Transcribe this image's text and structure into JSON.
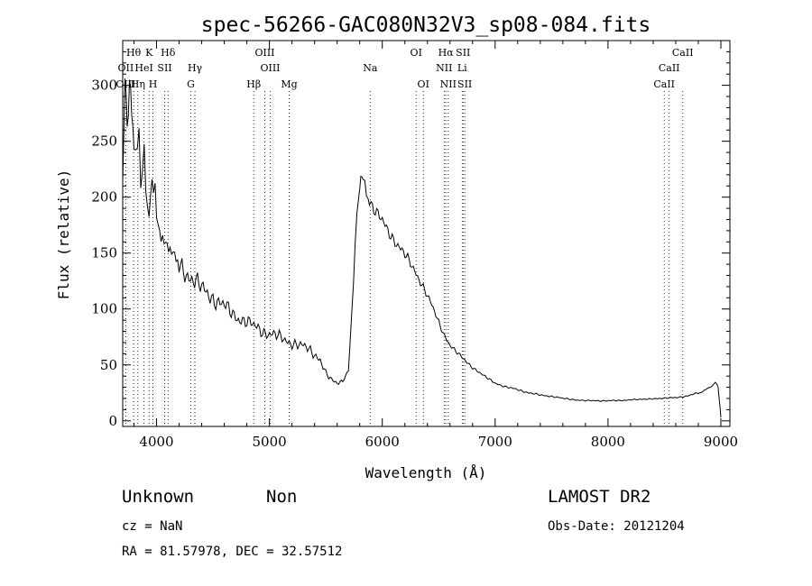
{
  "chart_data": {
    "type": "line",
    "title": "spec-56266-GAC080N32V3_sp08-084.fits",
    "xlabel": "Wavelength (Å)",
    "ylabel": "Flux (relative)",
    "xlim": [
      3700,
      9080
    ],
    "ylim": [
      -5,
      340
    ],
    "x_ticks": [
      4000,
      5000,
      6000,
      7000,
      8000,
      9000
    ],
    "y_ticks": [
      0,
      50,
      100,
      150,
      200,
      250,
      300
    ],
    "grid": false,
    "line_color": "#000000",
    "series": [
      {
        "x": [
          3700,
          3720,
          3740,
          3760,
          3780,
          3800,
          3830,
          3860,
          3890,
          3920,
          3960,
          4000,
          4040,
          4080,
          4120,
          4160,
          4200,
          4250,
          4300,
          4350,
          4400,
          4450,
          4500,
          4550,
          4600,
          4650,
          4700,
          4750,
          4800,
          4850,
          4900,
          4950,
          5000,
          5050,
          5100,
          5150,
          5200,
          5250,
          5300,
          5350,
          5400,
          5450,
          5500,
          5550,
          5600,
          5650,
          5700,
          5730,
          5760,
          5790,
          5810,
          5830,
          5860,
          5900,
          5950,
          6000,
          6050,
          6100,
          6150,
          6200,
          6250,
          6300,
          6350,
          6400,
          6450,
          6500,
          6550,
          6600,
          6650,
          6700,
          6800,
          6900,
          7000,
          7100,
          7200,
          7300,
          7400,
          7500,
          7600,
          7700,
          7800,
          7900,
          8000,
          8100,
          8200,
          8300,
          8400,
          8500,
          8600,
          8700,
          8800,
          8880,
          8920,
          8950,
          8975,
          8990,
          9000
        ],
        "y": [
          215,
          280,
          260,
          305,
          250,
          275,
          230,
          245,
          215,
          210,
          195,
          180,
          170,
          160,
          150,
          145,
          140,
          135,
          128,
          123,
          118,
          115,
          110,
          106,
          102,
          98,
          94,
          91,
          88,
          85,
          83,
          80,
          78,
          76,
          74,
          72,
          70,
          68,
          66,
          64,
          60,
          55,
          42,
          36,
          34,
          36,
          45,
          95,
          160,
          200,
          222,
          215,
          205,
          195,
          185,
          178,
          170,
          163,
          156,
          148,
          140,
          132,
          123,
          112,
          100,
          88,
          77,
          68,
          62,
          57,
          48,
          40,
          34,
          30,
          28,
          25,
          23,
          22,
          20,
          19,
          18,
          18,
          18,
          18,
          19,
          19,
          20,
          20,
          21,
          22,
          25,
          28,
          31,
          34,
          30,
          15,
          3
        ]
      }
    ],
    "spectral_lines": [
      {
        "label": "Hθ",
        "x": 3797,
        "row": 0
      },
      {
        "label": "K",
        "x": 3934,
        "row": 0
      },
      {
        "label": "Hδ",
        "x": 4102,
        "row": 0
      },
      {
        "label": "OIII",
        "x": 4959,
        "row": 0
      },
      {
        "label": "OI",
        "x": 6300,
        "row": 0
      },
      {
        "label": "Hα",
        "x": 6563,
        "row": 0
      },
      {
        "label": "SII",
        "x": 6716,
        "row": 0
      },
      {
        "label": "CaII",
        "x": 8662,
        "row": 0
      },
      {
        "label": "OII",
        "x": 3727,
        "row": 1
      },
      {
        "label": "HeI",
        "x": 3889,
        "row": 1
      },
      {
        "label": "SII",
        "x": 4072,
        "row": 1
      },
      {
        "label": "Hγ",
        "x": 4340,
        "row": 1
      },
      {
        "label": "OIII",
        "x": 5007,
        "row": 1
      },
      {
        "label": "Na",
        "x": 5893,
        "row": 1
      },
      {
        "label": "NII",
        "x": 6548,
        "row": 1
      },
      {
        "label": "Li",
        "x": 6708,
        "row": 1
      },
      {
        "label": "CaII",
        "x": 8542,
        "row": 1
      },
      {
        "label": "OIII",
        "x": 3727,
        "row": 2
      },
      {
        "label": "Hη",
        "x": 3835,
        "row": 2
      },
      {
        "label": "H",
        "x": 3968,
        "row": 2
      },
      {
        "label": "G",
        "x": 4304,
        "row": 2
      },
      {
        "label": "Hβ",
        "x": 4861,
        "row": 2
      },
      {
        "label": "Mg",
        "x": 5175,
        "row": 2
      },
      {
        "label": "OI",
        "x": 6364,
        "row": 2
      },
      {
        "label": "NII",
        "x": 6584,
        "row": 2
      },
      {
        "label": "SII",
        "x": 6731,
        "row": 2
      },
      {
        "label": "CaII",
        "x": 8498,
        "row": 2
      }
    ]
  },
  "info": {
    "class": "Unknown",
    "subclass": "Non",
    "survey": "LAMOST DR2",
    "cz": "cz = NaN",
    "obs_date": "Obs-Date: 20121204",
    "coords": "RA =  81.57978, DEC =  32.57512"
  }
}
